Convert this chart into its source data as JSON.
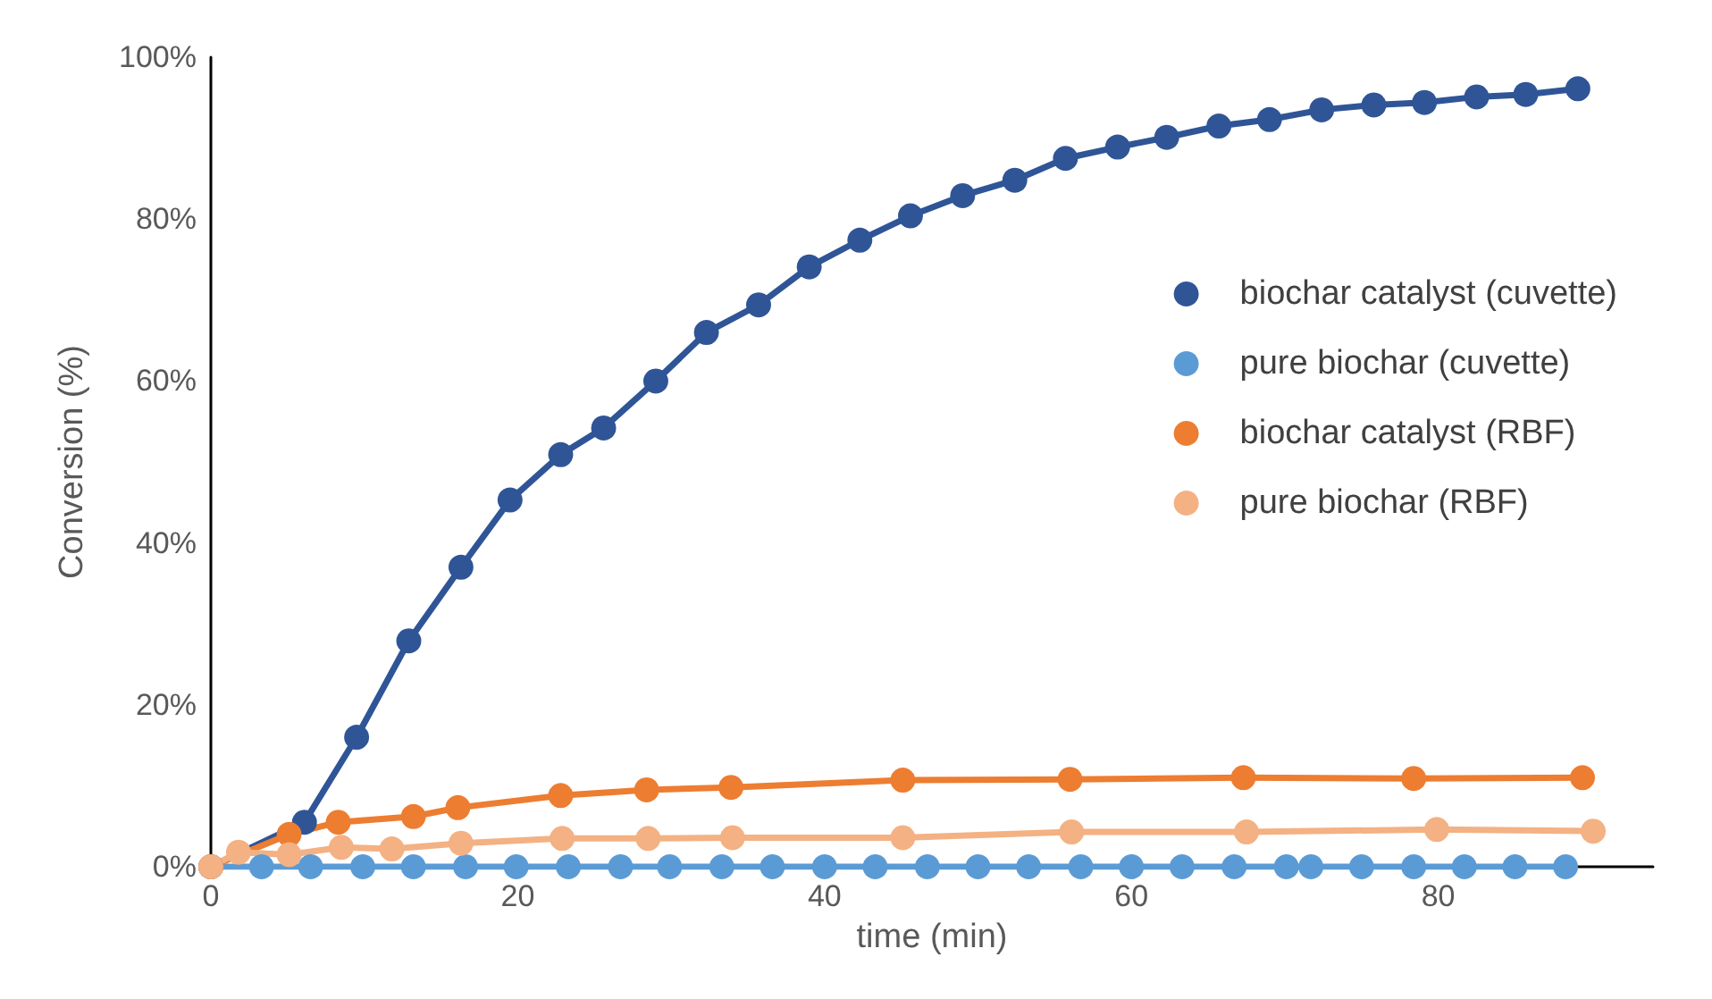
{
  "chart_data": {
    "type": "line",
    "xlabel": "time (min)",
    "ylabel": "Conversion (%)",
    "xlim": [
      0,
      94
    ],
    "xticks": [
      0,
      20,
      40,
      60,
      80
    ],
    "ylim": [
      0,
      100
    ],
    "yticks": [
      {
        "value": 0,
        "label": "0%"
      },
      {
        "value": 20,
        "label": "20%"
      },
      {
        "value": 40,
        "label": "40%"
      },
      {
        "value": 60,
        "label": "60%"
      },
      {
        "value": 80,
        "label": "80%"
      },
      {
        "value": 100,
        "label": "100%"
      }
    ],
    "grid": false,
    "legend": "right",
    "marker": "circle",
    "line_style": "solid",
    "series": [
      {
        "name": "biochar catalyst (cuvette)",
        "color": "#2f5597",
        "x": [
          0,
          6.1,
          9.5,
          12.9,
          16.3,
          19.5,
          22.8,
          25.6,
          29.0,
          32.3,
          35.7,
          39.0,
          42.3,
          45.6,
          49.0,
          52.4,
          55.7,
          59.1,
          62.3,
          65.7,
          69.0,
          72.4,
          75.8,
          79.1,
          82.5,
          85.7,
          89.1
        ],
        "values": [
          0,
          5.5,
          16.0,
          27.9,
          37.0,
          45.3,
          50.9,
          54.2,
          60.0,
          66.0,
          69.4,
          74.1,
          77.4,
          80.4,
          82.9,
          84.8,
          87.5,
          88.9,
          90.1,
          91.5,
          92.3,
          93.5,
          94.1,
          94.4,
          95.1,
          95.4,
          96.1
        ]
      },
      {
        "name": "pure biochar (cuvette)",
        "color": "#5b9bd5",
        "x": [
          0,
          3.3,
          6.5,
          9.9,
          13.2,
          16.6,
          19.9,
          23.3,
          26.7,
          29.9,
          33.3,
          36.6,
          40.0,
          43.3,
          46.7,
          50.0,
          53.3,
          56.7,
          60.0,
          63.3,
          66.7,
          70.1,
          71.7,
          75.0,
          78.4,
          81.7,
          85.0,
          88.3
        ],
        "values": [
          0,
          0,
          0,
          0,
          0,
          0,
          0,
          0,
          0,
          0,
          0,
          0,
          0,
          0,
          0,
          0,
          0,
          0,
          0,
          0,
          0,
          0,
          0,
          0,
          0,
          0,
          0,
          0
        ]
      },
      {
        "name": "biochar catalyst (RBF)",
        "color": "#ed7d31",
        "x": [
          0,
          5.1,
          8.3,
          13.2,
          16.1,
          22.8,
          28.4,
          33.9,
          45.1,
          56.0,
          67.3,
          78.4,
          89.4
        ],
        "values": [
          0,
          4.0,
          5.5,
          6.2,
          7.3,
          8.8,
          9.5,
          9.8,
          10.7,
          10.8,
          11.0,
          10.9,
          11.0
        ]
      },
      {
        "name": "pure biochar (RBF)",
        "color": "#f4b183",
        "x": [
          0,
          1.8,
          5.1,
          8.5,
          11.8,
          16.3,
          22.9,
          28.5,
          34.0,
          45.1,
          56.1,
          67.5,
          79.9,
          90.1
        ],
        "values": [
          0,
          1.8,
          1.5,
          2.4,
          2.2,
          2.9,
          3.5,
          3.5,
          3.6,
          3.6,
          4.3,
          4.3,
          4.6,
          4.4
        ]
      }
    ]
  }
}
